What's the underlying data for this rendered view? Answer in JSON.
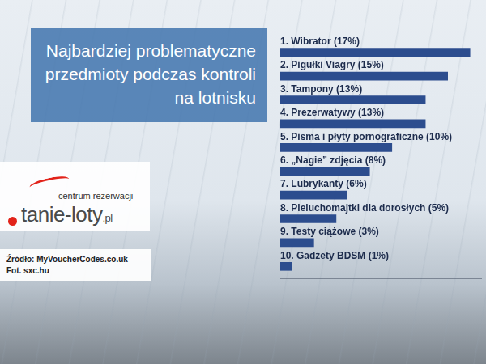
{
  "header": {
    "title": "Najbardziej problematyczne przedmioty podczas kontroli na lotnisku"
  },
  "logo": {
    "tagline": "centrum rezerwacji",
    "name": "tanie-loty",
    "domain": ".pl"
  },
  "source": {
    "lines": [
      "Źródło: MyVoucherCodes.co.uk",
      "Fot. sxc.hu"
    ]
  },
  "chart_data": {
    "type": "bar",
    "orientation": "horizontal",
    "categories": [
      "1. Wibrator (17%)",
      "2. Pigułki Viagry (15%)",
      "3. Tampony (13%)",
      "4. Prezerwatywy (13%)",
      "5. Pisma i płyty pornograficzne (10%)",
      "6. „Nagie” zdjęcia (8%)",
      "7. Lubrykanty (6%)",
      "8. Pieluchomajtki dla dorosłych (5%)",
      "9. Testy ciążowe (3%)",
      "10. Gadżety BDSM (1%)"
    ],
    "values": [
      17,
      15,
      13,
      13,
      10,
      8,
      6,
      5,
      3,
      1
    ],
    "color": "#2c4d8e",
    "xlim": [
      0,
      18
    ],
    "xticks": [],
    "tick_labels": "y",
    "grid": false
  }
}
